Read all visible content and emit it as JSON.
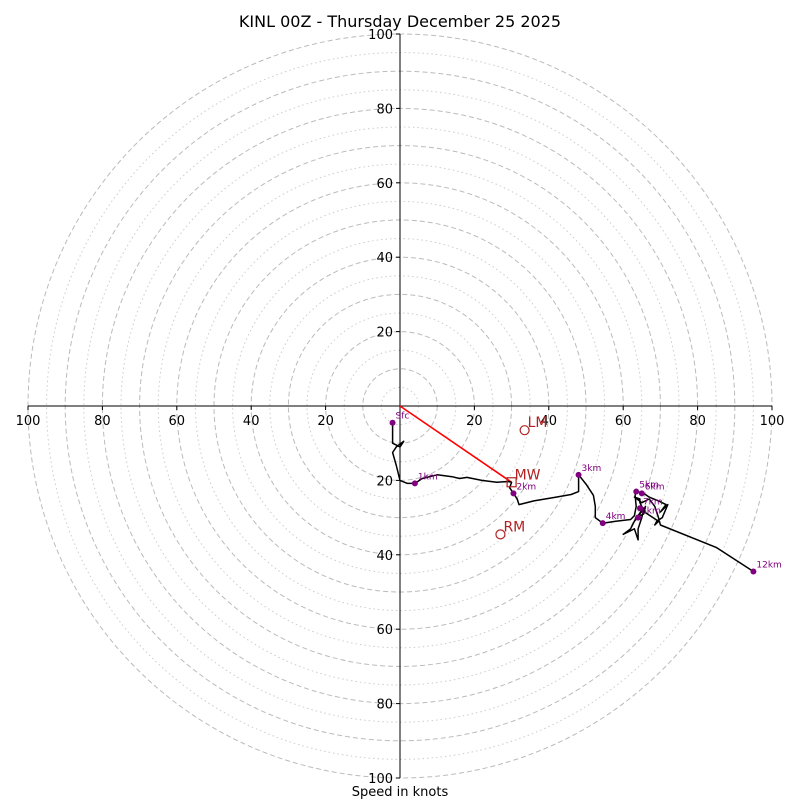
{
  "chart_data": {
    "type": "hodograph",
    "title": "KINL 00Z - Thursday December 25 2025",
    "xlabel": "Speed in knots",
    "axis_range": [
      -100,
      100
    ],
    "rings_dashed": [
      10,
      20,
      30,
      40,
      50,
      60,
      70,
      80,
      90,
      100
    ],
    "rings_dotted": [
      5,
      15,
      25,
      35,
      45,
      55,
      65,
      75,
      85,
      95
    ],
    "x_tick_labels": [
      "100",
      "80",
      "60",
      "40",
      "20",
      "20",
      "40",
      "60",
      "80",
      "100"
    ],
    "y_tick_labels": [
      "100",
      "80",
      "60",
      "40",
      "20",
      "20",
      "40",
      "60",
      "80",
      "100"
    ],
    "colors": {
      "trace": "#000000",
      "mean_wind": "#ff0000",
      "markers": "#800080",
      "motion": "#b22222",
      "grid": "#bbbbbb"
    },
    "trace": [
      [
        -2,
        -5
      ],
      [
        -2,
        -8
      ],
      [
        -2,
        -10
      ],
      [
        0,
        -11
      ],
      [
        1,
        -9.5
      ],
      [
        -1,
        -11
      ],
      [
        -2,
        -12.5
      ],
      [
        -1,
        -16
      ],
      [
        0,
        -20
      ],
      [
        2,
        -20.8
      ],
      [
        4,
        -20.8
      ],
      [
        6,
        -19.5
      ],
      [
        10,
        -18.5
      ],
      [
        14,
        -19
      ],
      [
        16,
        -19.5
      ],
      [
        18,
        -19.2
      ],
      [
        22,
        -20
      ],
      [
        26,
        -20.5
      ],
      [
        29,
        -20.3
      ],
      [
        30,
        -20.5
      ],
      [
        29.5,
        -22
      ],
      [
        30.5,
        -23.5
      ],
      [
        31.5,
        -25
      ],
      [
        32,
        -26.5
      ],
      [
        36,
        -25.5
      ],
      [
        42,
        -24.5
      ],
      [
        46,
        -23.8
      ],
      [
        48,
        -23
      ],
      [
        48,
        -21
      ],
      [
        48,
        -18.5
      ],
      [
        50,
        -21
      ],
      [
        52,
        -24
      ],
      [
        52.5,
        -27
      ],
      [
        52.5,
        -30
      ],
      [
        54.5,
        -31.5
      ],
      [
        58,
        -31
      ],
      [
        62,
        -30.5
      ],
      [
        63,
        -29.5
      ],
      [
        63.5,
        -27
      ],
      [
        63.2,
        -24
      ],
      [
        63.5,
        -23
      ],
      [
        63.8,
        -22.7
      ],
      [
        64.3,
        -23.2
      ],
      [
        65.5,
        -23.5
      ],
      [
        67,
        -24.5
      ],
      [
        69.5,
        -25.5
      ],
      [
        71.5,
        -26.5
      ],
      [
        70,
        -28.5
      ],
      [
        72,
        -26.5
      ],
      [
        70.5,
        -30
      ],
      [
        69,
        -31
      ],
      [
        68.5,
        -32
      ],
      [
        69.5,
        -31
      ],
      [
        68,
        -30
      ],
      [
        65,
        -28
      ],
      [
        64,
        -29.5
      ],
      [
        63,
        -31
      ],
      [
        66,
        -27
      ],
      [
        65.5,
        -29
      ],
      [
        63.5,
        -30
      ],
      [
        62,
        -33
      ],
      [
        60,
        -34.5
      ],
      [
        63,
        -33
      ],
      [
        64,
        -36
      ],
      [
        64,
        -33
      ],
      [
        65,
        -30
      ],
      [
        65.5,
        -28
      ],
      [
        64.5,
        -26
      ],
      [
        64.5,
        -25
      ],
      [
        63,
        -24.5
      ],
      [
        65,
        -26
      ],
      [
        67,
        -25
      ],
      [
        68.5,
        -27
      ],
      [
        69.5,
        -30
      ],
      [
        70,
        -32
      ],
      [
        85,
        -38
      ],
      [
        95,
        -44.5
      ]
    ],
    "height_markers": [
      {
        "label": "Sfc",
        "u": -2,
        "v": -4.5
      },
      {
        "label": "1km",
        "u": 4,
        "v": -20.8
      },
      {
        "label": "2km",
        "u": 30.5,
        "v": -23.5
      },
      {
        "label": "3km",
        "u": 48,
        "v": -18.5
      },
      {
        "label": "4km",
        "u": 54.5,
        "v": -31.5
      },
      {
        "label": "5km",
        "u": 63.5,
        "v": -23
      },
      {
        "label": "6km",
        "u": 65,
        "v": -23.5
      },
      {
        "label": "7km",
        "u": 64.5,
        "v": -27.5
      },
      {
        "label": "8km",
        "u": 64,
        "v": -30
      },
      {
        "label": "12km",
        "u": 95,
        "v": -44.5
      }
    ],
    "mean_wind_line": {
      "from": [
        0,
        0
      ],
      "to": [
        30,
        -20.5
      ]
    },
    "storm_motion": [
      {
        "label": "LM",
        "u": 33.5,
        "v": -6.5,
        "shape": "circle"
      },
      {
        "label": "MW",
        "u": 30,
        "v": -20.5,
        "shape": "square"
      },
      {
        "label": "RM",
        "u": 27,
        "v": -34.5,
        "shape": "circle"
      }
    ]
  }
}
